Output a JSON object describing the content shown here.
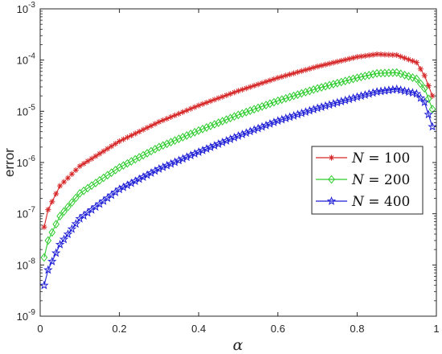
{
  "chart_data": {
    "type": "line",
    "title": "",
    "xlabel": "α",
    "ylabel": "error",
    "xlim": [
      0,
      1
    ],
    "ylim": [
      1e-09,
      0.001
    ],
    "yscale": "log",
    "grid": false,
    "legend_position": "right",
    "x_ticks": [
      "0",
      "0.2",
      "0.4",
      "0.6",
      "0.8",
      "1"
    ],
    "y_ticks": [
      {
        "base": "10",
        "exp": "-9"
      },
      {
        "base": "10",
        "exp": "-8"
      },
      {
        "base": "10",
        "exp": "-7"
      },
      {
        "base": "10",
        "exp": "-6"
      },
      {
        "base": "10",
        "exp": "-5"
      },
      {
        "base": "10",
        "exp": "-4"
      },
      {
        "base": "10",
        "exp": "-3"
      }
    ],
    "x": [
      0.01,
      0.02,
      0.05,
      0.1,
      0.2,
      0.3,
      0.4,
      0.5,
      0.6,
      0.7,
      0.8,
      0.85,
      0.9,
      0.95,
      0.97,
      0.99
    ],
    "series": [
      {
        "name_var": "N",
        "name_eq": " = 100",
        "color": "#d62728",
        "marker": "asterisk",
        "values": [
          5.5e-08,
          1.2e-07,
          3.5e-07,
          8.5e-07,
          2.6e-06,
          6.2e-06,
          1.3e-05,
          2.5e-05,
          4.5e-05,
          7.5e-05,
          0.000115,
          0.00013,
          0.000125,
          9e-05,
          5e-05,
          2e-05
        ]
      },
      {
        "name_var": "N",
        "name_eq": " = 200",
        "color": "#2ecc2e",
        "marker": "diamond",
        "values": [
          1.4e-08,
          3e-08,
          9e-08,
          2.5e-07,
          8e-07,
          2e-06,
          4.2e-06,
          8.5e-06,
          1.6e-05,
          2.8e-05,
          4.5e-05,
          5.5e-05,
          5.7e-05,
          4.3e-05,
          2.8e-05,
          1.1e-05
        ]
      },
      {
        "name_var": "N",
        "name_eq": " = 400",
        "color": "#1f1fd6",
        "marker": "pentagram",
        "values": [
          4e-09,
          8e-09,
          2.5e-08,
          8e-08,
          3e-07,
          7.5e-07,
          1.6e-06,
          3.3e-06,
          6.5e-06,
          1.15e-05,
          1.9e-05,
          2.4e-05,
          2.7e-05,
          2.2e-05,
          1.5e-05,
          5e-06
        ]
      }
    ]
  }
}
